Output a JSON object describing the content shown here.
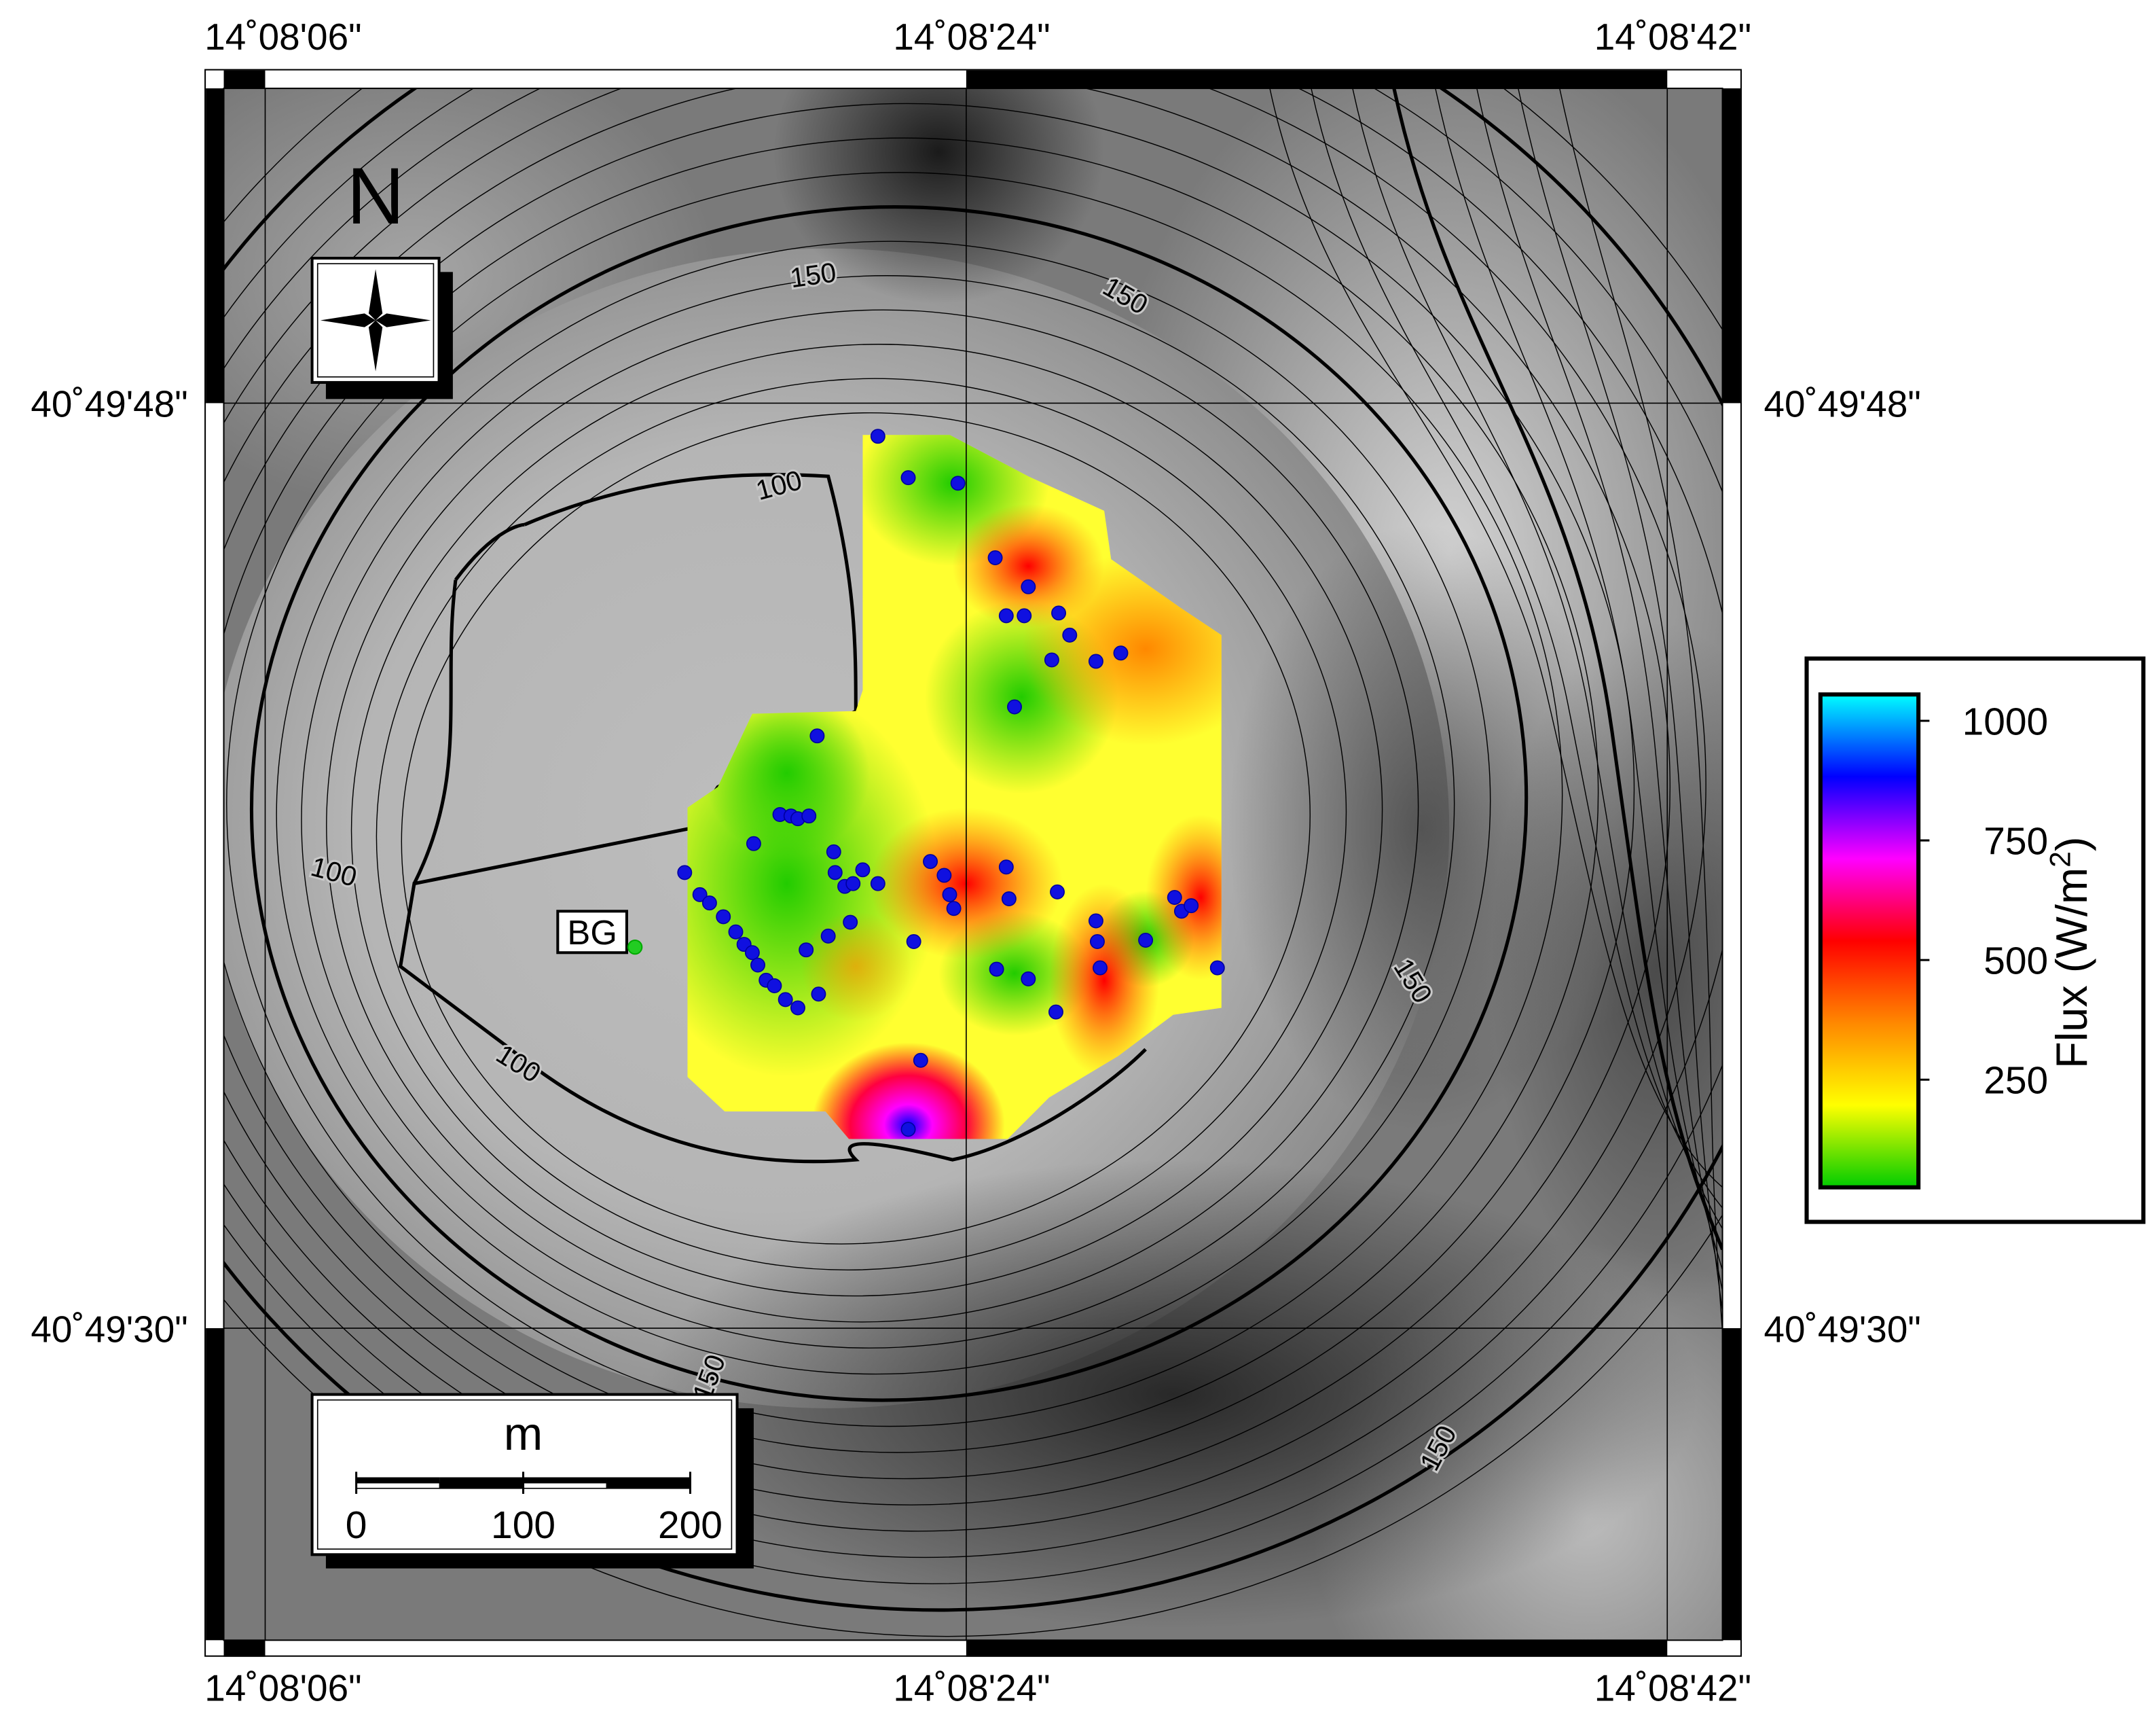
{
  "map": {
    "x_labels": [
      "14˚08'06\"",
      "14˚08'24\"",
      "14˚08'42\""
    ],
    "y_labels": [
      "40˚49'48\"",
      "40˚49'30\""
    ],
    "north_label": "N",
    "site_label": "BG",
    "contour_labels": [
      "150",
      "150",
      "100",
      "100",
      "100",
      "150",
      "150",
      "150"
    ],
    "scale_bar": {
      "unit": "m",
      "lim": [
        0,
        200
      ],
      "ticks": [
        0,
        100,
        200
      ]
    },
    "colorbar": {
      "title": "Flux (W/m",
      "title_superscript": "2",
      "title_end": ")",
      "lim": [
        25,
        1055
      ],
      "ticks": [
        250,
        500,
        750,
        1000
      ],
      "colors": [
        "#00cc00",
        "#ffff00",
        "#ff8800",
        "#ff0000",
        "#ff00ff",
        "#0000ff",
        "#00ffff"
      ]
    }
  }
}
